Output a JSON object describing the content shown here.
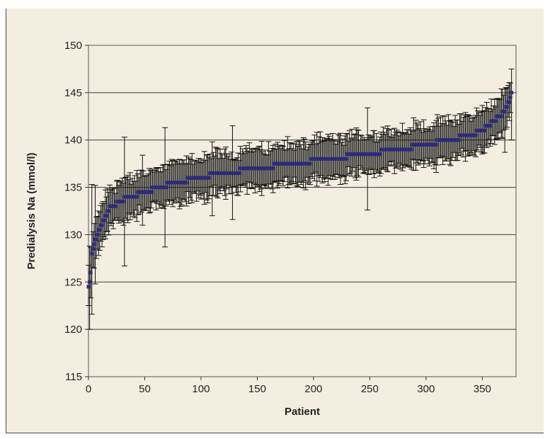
{
  "chart_data": {
    "type": "scatter",
    "title": "",
    "xlabel": "Patient",
    "ylabel": "Predialysis Na (mmol/l)",
    "xlim": [
      0,
      380
    ],
    "ylim": [
      115,
      150
    ],
    "xticks": [
      0,
      50,
      100,
      150,
      200,
      250,
      300,
      350
    ],
    "yticks": [
      115,
      120,
      125,
      130,
      135,
      140,
      145,
      150
    ],
    "grid": "horizontal",
    "legend": "none",
    "n_points": 377,
    "marker_color": "#2e2a7a",
    "errorbar_color": "#111111",
    "sorted_mean_profile": [
      [
        0,
        124.3
      ],
      [
        1,
        124.8
      ],
      [
        2,
        126.0
      ],
      [
        3,
        128.0
      ],
      [
        5,
        129.0
      ],
      [
        8,
        130.0
      ],
      [
        12,
        131.0
      ],
      [
        15,
        132.0
      ],
      [
        20,
        133.0
      ],
      [
        30,
        133.6
      ],
      [
        35,
        134.0
      ],
      [
        55,
        134.6
      ],
      [
        60,
        135.0
      ],
      [
        80,
        135.5
      ],
      [
        95,
        136.0
      ],
      [
        120,
        136.5
      ],
      [
        150,
        137.0
      ],
      [
        180,
        137.5
      ],
      [
        215,
        138.0
      ],
      [
        245,
        138.5
      ],
      [
        275,
        139.0
      ],
      [
        300,
        139.5
      ],
      [
        320,
        140.0
      ],
      [
        340,
        140.5
      ],
      [
        350,
        141.0
      ],
      [
        360,
        142.0
      ],
      [
        370,
        143.0
      ],
      [
        374,
        144.0
      ],
      [
        376,
        145.0
      ]
    ],
    "typical_sd_range": [
      1.5,
      2.5
    ],
    "outlier_error_bars": [
      {
        "x": 1,
        "low": 120.0,
        "high": 128.8
      },
      {
        "x": 3,
        "low": 121.6,
        "high": 135.3
      },
      {
        "x": 6,
        "low": 124.8,
        "high": 135.2
      },
      {
        "x": 32,
        "low": 126.7,
        "high": 140.3
      },
      {
        "x": 48,
        "low": 131.0,
        "high": 138.4
      },
      {
        "x": 68,
        "low": 128.7,
        "high": 141.3
      },
      {
        "x": 110,
        "low": 132.0,
        "high": 139.8
      },
      {
        "x": 128,
        "low": 131.6,
        "high": 141.5
      },
      {
        "x": 248,
        "low": 132.6,
        "high": 143.4
      },
      {
        "x": 370,
        "low": 138.7,
        "high": 145.4
      },
      {
        "x": 376,
        "low": 140.0,
        "high": 147.5
      }
    ]
  }
}
